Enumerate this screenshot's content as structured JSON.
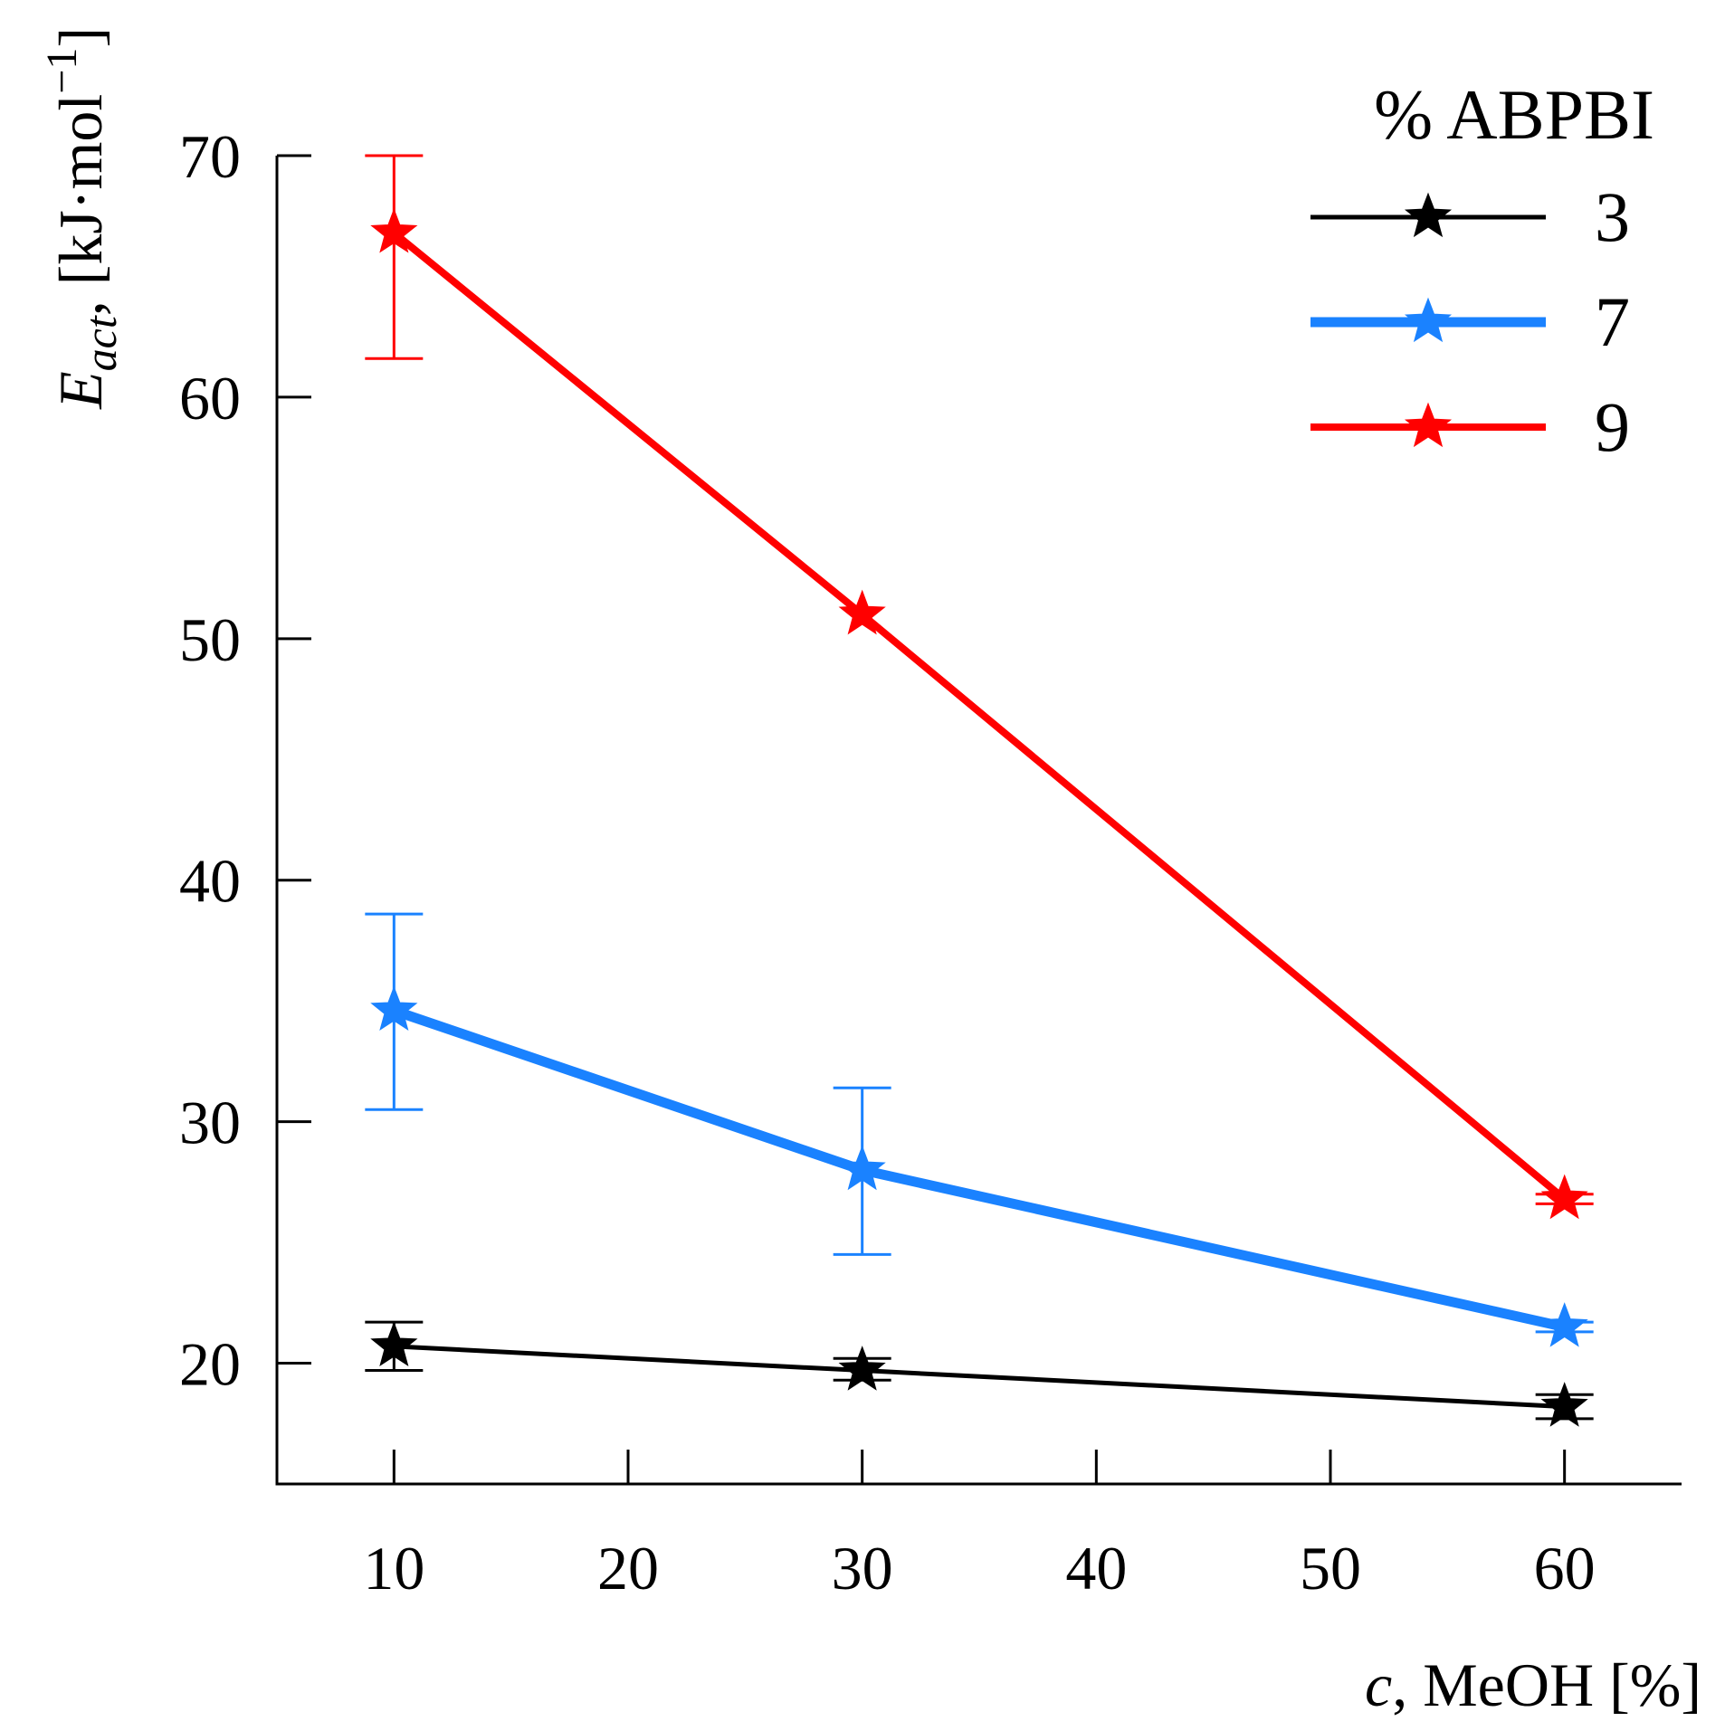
{
  "chart_data": {
    "type": "line",
    "xlabel": {
      "var": "c",
      "rest": ", MeOH [%]"
    },
    "ylabel": {
      "var": "E",
      "sub": "act",
      "rest": ", [kJ·mol",
      "sup": "−1",
      "close": "]"
    },
    "xlim": [
      5,
      65
    ],
    "ylim": [
      15,
      70
    ],
    "xticks": [
      10,
      20,
      30,
      40,
      50,
      60
    ],
    "yticks": [
      20,
      30,
      40,
      50,
      60,
      70
    ],
    "legend": {
      "title": "% ABPBI",
      "placement": "top-right"
    },
    "series": [
      {
        "name": "3",
        "color": "#000000",
        "marker": "star",
        "x": [
          10,
          30,
          60
        ],
        "y": [
          20.7,
          19.7,
          18.2
        ],
        "err_low": [
          19.7,
          19.3,
          17.7
        ],
        "err_high": [
          21.7,
          20.2,
          18.7
        ]
      },
      {
        "name": "7",
        "color": "#1a82ff",
        "marker": "star",
        "x": [
          10,
          30,
          60
        ],
        "y": [
          34.6,
          28.0,
          21.5
        ],
        "err_low": [
          30.5,
          24.5,
          21.3
        ],
        "err_high": [
          38.6,
          31.4,
          21.7
        ]
      },
      {
        "name": "9",
        "color": "#ff0000",
        "marker": "star",
        "x": [
          10,
          30,
          60
        ],
        "y": [
          66.8,
          51.0,
          26.8
        ],
        "err_low": [
          61.6,
          51.0,
          26.6
        ],
        "err_high": [
          70.0,
          51.0,
          27.0
        ]
      }
    ]
  }
}
